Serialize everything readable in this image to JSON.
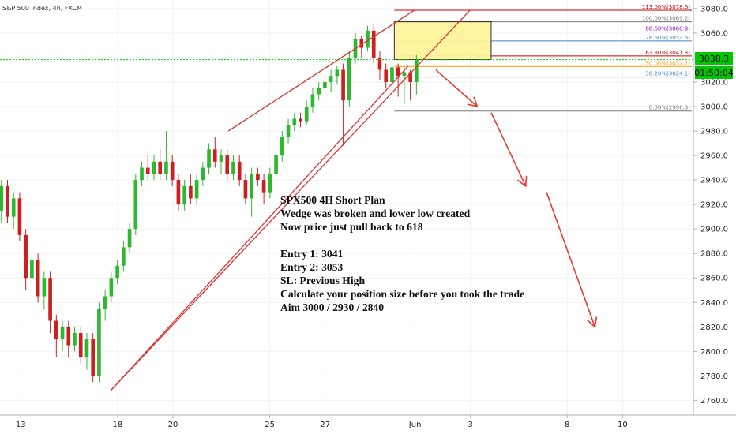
{
  "header": {
    "title": "S&P 500 Index, 4h, FXCM"
  },
  "price_badge": {
    "price": "3038.3",
    "countdown": "01:50:04",
    "color": "#00c800"
  },
  "annotation": {
    "lines": [
      "SPX500 4H Short Plan",
      "Wedge was broken and lower low created",
      "Now price just pull back to 618",
      "",
      "Entry 1: 3041",
      "Entry 2: 3053",
      "SL: Previous High",
      "Calculate your position size before you took the trade",
      "Aim 3000 / 2930 / 2840"
    ]
  },
  "fib_levels": [
    {
      "label": "113.00%(3078.6)",
      "value": 3078.6,
      "color": "#cc0000"
    },
    {
      "label": "100.00%(3069.2)",
      "value": 3069.2,
      "color": "#787878"
    },
    {
      "label": "88.60%(3060.9)",
      "value": 3060.9,
      "color": "#9900cc"
    },
    {
      "label": "78.60%(3053.6)",
      "value": 3053.6,
      "color": "#3d85c6"
    },
    {
      "label": "61.80%(3041.3)",
      "value": 3041.3,
      "color": "#cc0000"
    },
    {
      "label": "50.00%(3032.7)",
      "value": 3032.7,
      "color": "#ff9900"
    },
    {
      "label": "38.20%(3024.1)",
      "value": 3024.1,
      "color": "#3d85c6"
    },
    {
      "label": "0.00%(2996.3)",
      "value": 2996.3,
      "color": "#787878"
    }
  ],
  "chart_data": {
    "type": "candlestick",
    "title": "S&P 500 Index, 4h, FXCM",
    "yticks": [
      2760,
      2780,
      2800,
      2820,
      2840,
      2860,
      2880,
      2900,
      2920,
      2940,
      2960,
      2980,
      3000,
      3020,
      3040,
      3060,
      3080
    ],
    "ytick_labels": [
      "2760.0",
      "2780.0",
      "2800.0",
      "2820.0",
      "2840.0",
      "2860.0",
      "2880.0",
      "2900.0",
      "2920.0",
      "2940.0",
      "2960.0",
      "2980.0",
      "3000.0",
      "3020.0",
      "3040.0",
      "3060.0",
      "3080.0"
    ],
    "ylim": [
      2748,
      3087
    ],
    "xlim": [
      0,
      100
    ],
    "xticks": [
      {
        "label": "13",
        "pos": 3
      },
      {
        "label": "18",
        "pos": 17
      },
      {
        "label": "20",
        "pos": 25
      },
      {
        "label": "25",
        "pos": 39
      },
      {
        "label": "27",
        "pos": 47
      },
      {
        "label": "Jun",
        "pos": 60
      },
      {
        "label": "3",
        "pos": 68
      },
      {
        "label": "8",
        "pos": 82
      },
      {
        "label": "10",
        "pos": 90
      }
    ],
    "last_price": 3038.3,
    "candles": [
      [
        2915,
        2935,
        2940,
        2905
      ],
      [
        2935,
        2910,
        2940,
        2905
      ],
      [
        2910,
        2925,
        2930,
        2900
      ],
      [
        2925,
        2895,
        2930,
        2890
      ],
      [
        2895,
        2860,
        2900,
        2850
      ],
      [
        2860,
        2875,
        2880,
        2855
      ],
      [
        2875,
        2845,
        2880,
        2840
      ],
      [
        2845,
        2860,
        2865,
        2835
      ],
      [
        2860,
        2825,
        2865,
        2815
      ],
      [
        2825,
        2810,
        2830,
        2795
      ],
      [
        2810,
        2820,
        2825,
        2800
      ],
      [
        2820,
        2805,
        2825,
        2795
      ],
      [
        2805,
        2815,
        2820,
        2800
      ],
      [
        2815,
        2795,
        2820,
        2790
      ],
      [
        2795,
        2810,
        2815,
        2785
      ],
      [
        2810,
        2780,
        2815,
        2775
      ],
      [
        2780,
        2835,
        2840,
        2775
      ],
      [
        2835,
        2845,
        2850,
        2825
      ],
      [
        2845,
        2860,
        2865,
        2840
      ],
      [
        2860,
        2870,
        2875,
        2855
      ],
      [
        2870,
        2885,
        2890,
        2865
      ],
      [
        2885,
        2900,
        2905,
        2880
      ],
      [
        2900,
        2940,
        2945,
        2895
      ],
      [
        2940,
        2950,
        2955,
        2935
      ],
      [
        2950,
        2945,
        2960,
        2940
      ],
      [
        2945,
        2955,
        2960,
        2940
      ],
      [
        2955,
        2945,
        2965,
        2940
      ],
      [
        2945,
        2955,
        2980,
        2940
      ],
      [
        2955,
        2940,
        2960,
        2935
      ],
      [
        2940,
        2920,
        2945,
        2915
      ],
      [
        2920,
        2935,
        2940,
        2915
      ],
      [
        2935,
        2925,
        2945,
        2920
      ],
      [
        2925,
        2940,
        2945,
        2920
      ],
      [
        2940,
        2950,
        2955,
        2935
      ],
      [
        2950,
        2965,
        2970,
        2945
      ],
      [
        2965,
        2955,
        2975,
        2950
      ],
      [
        2955,
        2960,
        2965,
        2945
      ],
      [
        2960,
        2945,
        2965,
        2940
      ],
      [
        2945,
        2955,
        2960,
        2940
      ],
      [
        2955,
        2940,
        2960,
        2935
      ],
      [
        2940,
        2925,
        2945,
        2920
      ],
      [
        2925,
        2945,
        2950,
        2910
      ],
      [
        2945,
        2940,
        2950,
        2935
      ],
      [
        2940,
        2930,
        2945,
        2920
      ],
      [
        2930,
        2945,
        2950,
        2925
      ],
      [
        2945,
        2960,
        2965,
        2940
      ],
      [
        2960,
        2975,
        2980,
        2955
      ],
      [
        2975,
        2985,
        2990,
        2970
      ],
      [
        2985,
        2990,
        2995,
        2980
      ],
      [
        2990,
        2988,
        2995,
        2983
      ],
      [
        2988,
        3000,
        3005,
        2985
      ],
      [
        3000,
        3010,
        3015,
        2995
      ],
      [
        3010,
        3015,
        3020,
        3005
      ],
      [
        3015,
        3020,
        3025,
        3010
      ],
      [
        3020,
        3025,
        3030,
        3012
      ],
      [
        3025,
        3030,
        3033,
        3018
      ],
      [
        3030,
        3005,
        3035,
        2968
      ],
      [
        3005,
        3040,
        3045,
        3000
      ],
      [
        3040,
        3055,
        3060,
        3035
      ],
      [
        3055,
        3048,
        3058,
        3040
      ],
      [
        3048,
        3062,
        3066,
        3045
      ],
      [
        3062,
        3040,
        3068,
        3035
      ],
      [
        3040,
        3030,
        3045,
        3022
      ],
      [
        3030,
        3020,
        3035,
        3015
      ],
      [
        3020,
        3032,
        3038,
        3010
      ],
      [
        3032,
        3025,
        3035,
        3008
      ],
      [
        3025,
        3028,
        3033,
        3002
      ],
      [
        3028,
        3020,
        3030,
        3005
      ],
      [
        3020,
        3038,
        3042,
        3010
      ]
    ],
    "trendlines": [
      {
        "color": "#e03030",
        "points": [
          [
            16,
            2768
          ],
          [
            68,
            3079
          ]
        ]
      },
      {
        "color": "#e03030",
        "points": [
          [
            16,
            2768
          ],
          [
            59,
            3033
          ]
        ]
      },
      {
        "color": "#e03030",
        "points": [
          [
            33,
            2980
          ],
          [
            60,
            3079
          ]
        ]
      }
    ],
    "projection_arrows": [
      {
        "from": [
          63,
          3030
        ],
        "to": [
          69,
          3000
        ]
      },
      {
        "from": [
          71,
          2995
        ],
        "to": [
          76,
          2935
        ]
      },
      {
        "from": [
          79,
          2930
        ],
        "to": [
          86,
          2820
        ]
      }
    ],
    "target_box": {
      "x0": 57,
      "x1": 71,
      "y0": 3038.3,
      "y1": 3069.2,
      "fill": "#fff59d",
      "stroke": "#222222"
    }
  }
}
